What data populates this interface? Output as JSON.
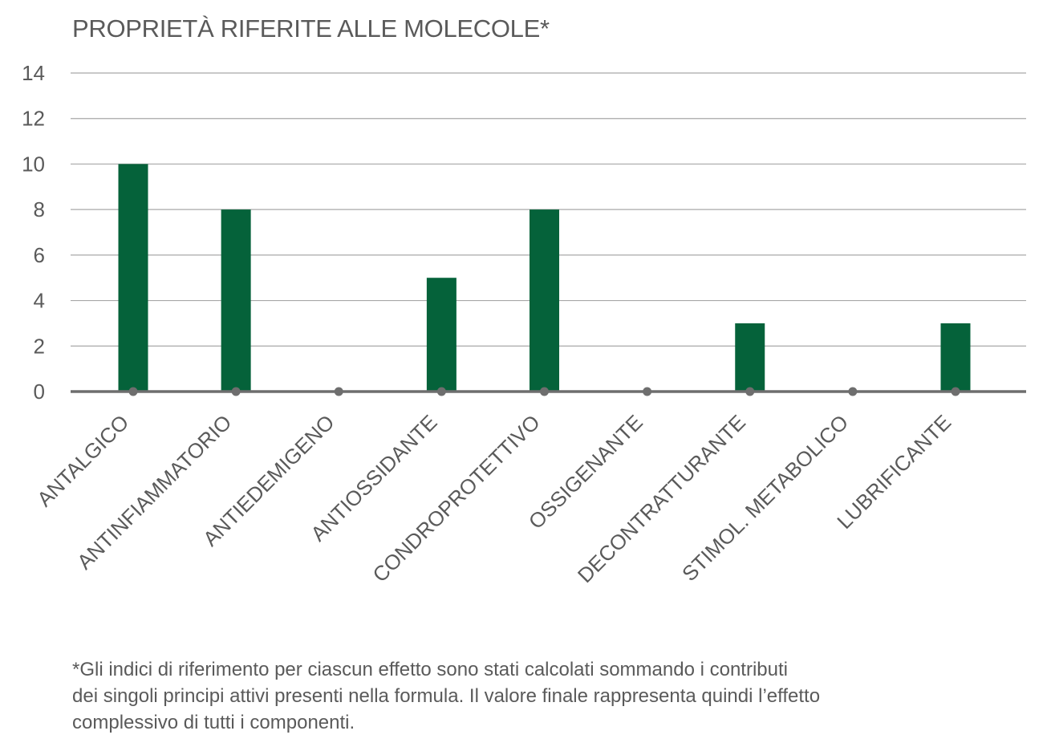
{
  "chart_data": {
    "type": "bar",
    "title": "PROPRIETÀ RIFERITE ALLE MOLECOLE*",
    "xlabel": "",
    "ylabel": "",
    "ylim": [
      0,
      14
    ],
    "yticks": [
      0,
      2,
      4,
      6,
      8,
      10,
      12,
      14
    ],
    "grid": true,
    "categories": [
      "ANTALGICO",
      "ANTINFIAMMATORIO",
      "ANTIEDEMIGENO",
      "ANTIOSSIDANTE",
      "CONDROPROTETTIVO",
      "OSSIGENANTE",
      "DECONTRATTURANTE",
      "STIMOL. METABOLICO",
      "LUBRIFICANTE"
    ],
    "values": [
      10,
      8,
      0,
      5,
      8,
      0,
      3,
      0,
      3
    ],
    "bar_color": "#05623a",
    "grid_color": "#a8a8a8",
    "axis_color": "#6e6e6e",
    "marker_color": "#6e6e6e"
  },
  "footnote": {
    "lines": [
      "*Gli indici di riferimento per ciascun effetto sono stati calcolati sommando i contributi",
      "dei singoli principi attivi presenti nella formula. Il valore finale rappresenta quindi l’effetto",
      "complessivo di tutti i componenti."
    ]
  }
}
